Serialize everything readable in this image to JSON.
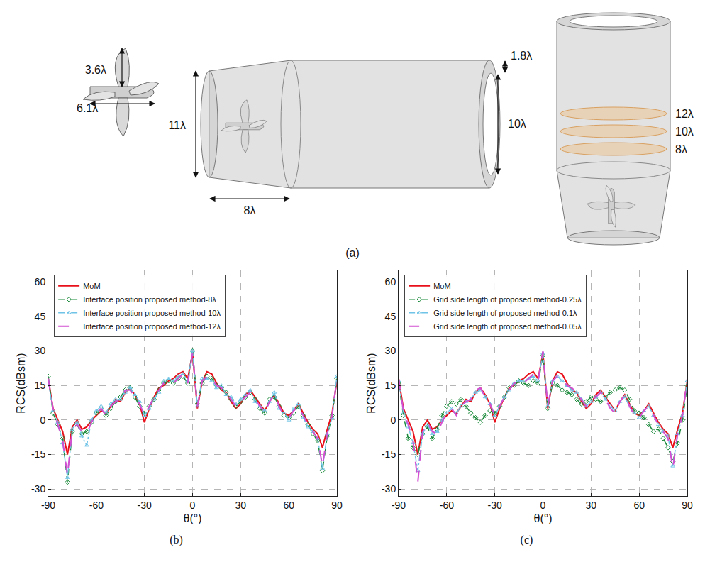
{
  "diagram": {
    "label": "(a)",
    "propeller": {
      "height": "3.6λ",
      "length": "6.1λ"
    },
    "duct": {
      "inlet_diameter": "11λ",
      "inlet_length": "8λ",
      "wall": "1.8λ",
      "outlet_diameter": "10λ"
    },
    "interfaces": [
      "12λ",
      "10λ",
      "8λ"
    ]
  },
  "chart_data": [
    {
      "type": "line",
      "title": "(b)",
      "x_label": "θ(°)",
      "y_label": "RCS(dBsm)",
      "x": [
        -90,
        -87,
        -84,
        -81,
        -78,
        -75,
        -72,
        -69,
        -66,
        -63,
        -60,
        -57,
        -54,
        -51,
        -48,
        -45,
        -42,
        -39,
        -36,
        -33,
        -30,
        -27,
        -24,
        -21,
        -18,
        -15,
        -12,
        -9,
        -6,
        -3,
        0,
        3,
        6,
        9,
        12,
        15,
        18,
        21,
        24,
        27,
        30,
        33,
        36,
        39,
        42,
        45,
        48,
        51,
        54,
        57,
        60,
        63,
        66,
        69,
        72,
        75,
        78,
        81,
        84,
        87,
        90
      ],
      "xlim": [
        -90,
        90
      ],
      "xticks": [
        -90,
        -60,
        -30,
        0,
        30,
        60,
        90
      ],
      "ylim": [
        -33,
        65
      ],
      "yticks": [
        -30,
        -15,
        0,
        15,
        30,
        45,
        60
      ],
      "grid": true,
      "legend": "upper left",
      "series": [
        {
          "name": "MoM",
          "color": "#e8101a",
          "line_style": "solid",
          "values": [
            18,
            5,
            0,
            -5,
            -15,
            -3,
            0,
            -4,
            -3,
            0,
            2,
            4,
            3,
            6,
            9,
            8,
            12,
            14,
            11,
            7,
            -1,
            5,
            10,
            14,
            15,
            17,
            18,
            20,
            21,
            18,
            29,
            5,
            17,
            21,
            20,
            16,
            13,
            12,
            8,
            5,
            7,
            11,
            13,
            10,
            7,
            4,
            8,
            11,
            7,
            3,
            2,
            4,
            7,
            3,
            -1,
            -4,
            -6,
            -12,
            -4,
            3,
            17
          ]
        },
        {
          "name": "Interface position proposed method-8λ",
          "color": "#1a8a3a",
          "line_style": "dash",
          "marker": "diamond",
          "values": [
            19,
            3,
            -2,
            -8,
            -27,
            -5,
            -2,
            -6,
            -5,
            -1,
            3,
            5,
            2,
            5,
            8,
            10,
            13,
            14,
            10,
            6,
            3,
            6,
            9,
            13,
            16,
            17,
            16,
            18,
            19,
            16,
            30,
            7,
            16,
            19,
            18,
            15,
            14,
            12,
            9,
            6,
            8,
            10,
            12,
            9,
            5,
            3,
            9,
            10,
            6,
            2,
            1,
            3,
            6,
            2,
            -2,
            -6,
            -9,
            -22,
            -7,
            2,
            18
          ]
        },
        {
          "name": "Interface position proposed method-10λ",
          "color": "#6ec3e6",
          "line_style": "dashdot",
          "marker": "triangle",
          "values": [
            17,
            4,
            -1,
            -10,
            -25,
            -4,
            -1,
            -7,
            -11,
            0,
            4,
            6,
            3,
            7,
            9,
            9,
            12,
            14,
            11,
            8,
            2,
            5,
            9,
            12,
            17,
            18,
            17,
            19,
            20,
            17,
            30,
            6,
            18,
            18,
            17,
            14,
            15,
            11,
            10,
            7,
            9,
            11,
            13,
            8,
            6,
            4,
            8,
            12,
            5,
            3,
            0,
            5,
            7,
            1,
            -3,
            -5,
            -8,
            -21,
            -6,
            1,
            19
          ]
        },
        {
          "name": "Interface position proposed method-12λ",
          "color": "#d24fd2",
          "line_style": "longdash",
          "values": [
            18,
            5,
            -2,
            -9,
            -24,
            -4,
            -2,
            -5,
            -6,
            -1,
            3,
            5,
            2,
            6,
            8,
            9,
            13,
            13,
            10,
            7,
            2,
            6,
            10,
            13,
            16,
            17,
            16,
            18,
            20,
            16,
            29,
            6,
            17,
            19,
            18,
            15,
            14,
            12,
            9,
            6,
            8,
            10,
            12,
            9,
            6,
            3,
            8,
            11,
            6,
            2,
            1,
            4,
            6,
            2,
            -2,
            -5,
            -8,
            -20,
            -6,
            2,
            18
          ]
        }
      ]
    },
    {
      "type": "line",
      "title": "(c)",
      "x_label": "θ(°)",
      "y_label": "RCS(dBsm)",
      "x": [
        -90,
        -87,
        -84,
        -81,
        -78,
        -75,
        -72,
        -69,
        -66,
        -63,
        -60,
        -57,
        -54,
        -51,
        -48,
        -45,
        -42,
        -39,
        -36,
        -33,
        -30,
        -27,
        -24,
        -21,
        -18,
        -15,
        -12,
        -9,
        -6,
        -3,
        0,
        3,
        6,
        9,
        12,
        15,
        18,
        21,
        24,
        27,
        30,
        33,
        36,
        39,
        42,
        45,
        48,
        51,
        54,
        57,
        60,
        63,
        66,
        69,
        72,
        75,
        78,
        81,
        84,
        87,
        90
      ],
      "xlim": [
        -90,
        90
      ],
      "xticks": [
        -90,
        -60,
        -30,
        0,
        30,
        60,
        90
      ],
      "ylim": [
        -33,
        65
      ],
      "yticks": [
        -30,
        -15,
        0,
        15,
        30,
        45,
        60
      ],
      "grid": true,
      "legend": "upper left",
      "series": [
        {
          "name": "MoM",
          "color": "#e8101a",
          "line_style": "solid",
          "values": [
            18,
            5,
            0,
            -5,
            -15,
            -3,
            0,
            -4,
            -3,
            0,
            2,
            4,
            3,
            6,
            9,
            8,
            12,
            14,
            11,
            7,
            -1,
            5,
            10,
            14,
            15,
            17,
            18,
            20,
            21,
            18,
            29,
            5,
            17,
            21,
            20,
            16,
            13,
            12,
            8,
            5,
            7,
            11,
            13,
            10,
            7,
            4,
            8,
            11,
            7,
            3,
            2,
            4,
            7,
            3,
            -1,
            -4,
            -6,
            -12,
            -4,
            3,
            17
          ]
        },
        {
          "name": "Grid side length of proposed method-0.25λ",
          "color": "#1a8a3a",
          "line_style": "dash",
          "marker": "diamond",
          "values": [
            16,
            2,
            -8,
            -12,
            -15,
            -6,
            -3,
            -8,
            -4,
            2,
            6,
            8,
            7,
            9,
            6,
            3,
            1,
            -1,
            2,
            4,
            3,
            6,
            10,
            14,
            15,
            17,
            16,
            15,
            17,
            16,
            28,
            5,
            16,
            15,
            13,
            12,
            11,
            9,
            7,
            8,
            10,
            9,
            8,
            10,
            12,
            13,
            14,
            13,
            9,
            4,
            3,
            1,
            -2,
            -5,
            -4,
            -8,
            -12,
            -18,
            -10,
            0,
            15
          ]
        },
        {
          "name": "Grid side length of proposed method-0.1λ",
          "color": "#6ec3e6",
          "line_style": "dashdot",
          "marker": "triangle",
          "values": [
            17,
            3,
            -3,
            -10,
            -22,
            -6,
            -2,
            -6,
            -5,
            0,
            3,
            5,
            3,
            6,
            8,
            9,
            12,
            13,
            10,
            7,
            2,
            6,
            10,
            13,
            16,
            17,
            17,
            18,
            19,
            17,
            29,
            6,
            17,
            19,
            17,
            15,
            13,
            12,
            9,
            6,
            8,
            10,
            12,
            9,
            6,
            4,
            8,
            10,
            6,
            3,
            1,
            4,
            6,
            2,
            -2,
            -5,
            -7,
            -20,
            -6,
            2,
            17
          ]
        },
        {
          "name": "Grid side length of proposed method-0.05λ",
          "color": "#d24fd2",
          "line_style": "longdash",
          "values": [
            18,
            4,
            -2,
            -9,
            -27,
            -5,
            -1,
            -5,
            -6,
            -1,
            3,
            5,
            2,
            6,
            8,
            9,
            13,
            14,
            10,
            7,
            2,
            6,
            10,
            13,
            16,
            17,
            16,
            18,
            20,
            17,
            30,
            6,
            17,
            19,
            18,
            15,
            14,
            12,
            9,
            6,
            8,
            10,
            12,
            9,
            5,
            3,
            8,
            11,
            6,
            2,
            1,
            4,
            6,
            2,
            -2,
            -5,
            -8,
            -21,
            -6,
            2,
            18
          ]
        }
      ]
    }
  ]
}
